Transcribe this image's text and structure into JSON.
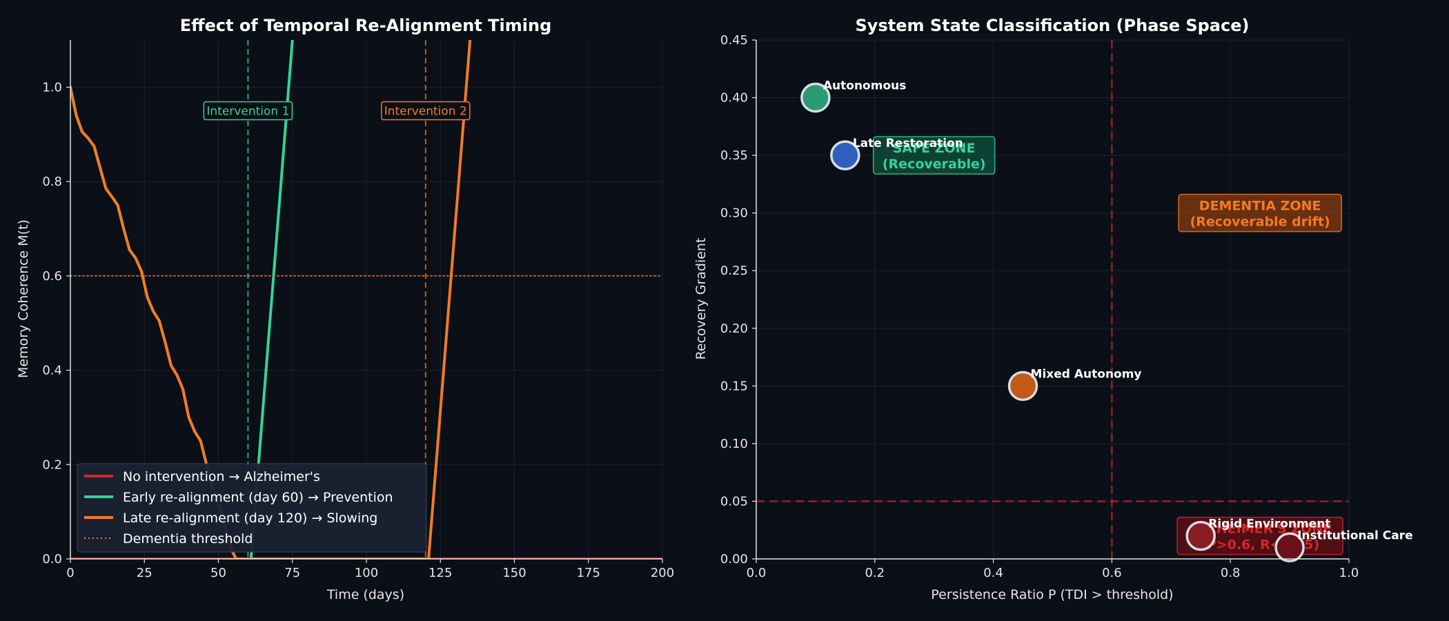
{
  "colors": {
    "background": "#0b0f17",
    "axis": "#e6e6e6",
    "grid": "#1c2330",
    "red": "#d62728",
    "green": "#34d399",
    "orange": "#f47b20",
    "blue": "#2f5fbf",
    "dark_green": "#2a9a72",
    "dark_orange": "#c25a17"
  },
  "chart_data": [
    {
      "type": "line",
      "title": "Effect of Temporal Re-Alignment Timing",
      "xlabel": "Time (days)",
      "ylabel": "Memory Coherence M(t)",
      "xlim": [
        0,
        200
      ],
      "ylim": [
        0,
        1.1
      ],
      "xticks": [
        0,
        25,
        50,
        75,
        100,
        125,
        150,
        175,
        200
      ],
      "yticks": [
        0.0,
        0.2,
        0.4,
        0.6,
        0.8,
        1.0
      ],
      "grid": true,
      "legend_position": "lower-left",
      "series": [
        {
          "name": "No intervention → Alzheimer's",
          "color": "#d62728",
          "style": "solid",
          "points": [
            [
              0,
              0
            ],
            [
              200,
              0
            ]
          ]
        },
        {
          "name": "Early re-alignment (day 60) → Prevention",
          "color": "#34d399",
          "style": "solid",
          "points": [
            [
              0,
              1.0
            ],
            [
              2,
              0.94
            ],
            [
              4,
              0.905
            ],
            [
              6,
              0.892
            ],
            [
              8,
              0.875
            ],
            [
              10,
              0.83
            ],
            [
              12,
              0.785
            ],
            [
              14,
              0.768
            ],
            [
              16,
              0.75
            ],
            [
              18,
              0.7
            ],
            [
              20,
              0.655
            ],
            [
              22,
              0.638
            ],
            [
              24,
              0.61
            ],
            [
              26,
              0.555
            ],
            [
              28,
              0.525
            ],
            [
              30,
              0.505
            ],
            [
              32,
              0.46
            ],
            [
              34,
              0.41
            ],
            [
              36,
              0.39
            ],
            [
              38,
              0.36
            ],
            [
              40,
              0.3
            ],
            [
              42,
              0.27
            ],
            [
              44,
              0.25
            ],
            [
              46,
              0.2
            ],
            [
              48,
              0.15
            ],
            [
              50,
              0.118
            ],
            [
              52,
              0.075
            ],
            [
              54,
              0.025
            ],
            [
              56,
              0.0
            ],
            [
              60,
              0.0
            ],
            [
              61,
              0.0
            ],
            [
              75,
              1.1
            ]
          ]
        },
        {
          "name": "Late re-alignment (day 120) → Slowing",
          "color": "#f47b20",
          "style": "solid",
          "points": [
            [
              0,
              1.0
            ],
            [
              2,
              0.94
            ],
            [
              4,
              0.905
            ],
            [
              6,
              0.892
            ],
            [
              8,
              0.875
            ],
            [
              10,
              0.83
            ],
            [
              12,
              0.785
            ],
            [
              14,
              0.768
            ],
            [
              16,
              0.75
            ],
            [
              18,
              0.7
            ],
            [
              20,
              0.655
            ],
            [
              22,
              0.638
            ],
            [
              24,
              0.61
            ],
            [
              26,
              0.555
            ],
            [
              28,
              0.525
            ],
            [
              30,
              0.505
            ],
            [
              32,
              0.46
            ],
            [
              34,
              0.41
            ],
            [
              36,
              0.39
            ],
            [
              38,
              0.36
            ],
            [
              40,
              0.3
            ],
            [
              42,
              0.27
            ],
            [
              44,
              0.25
            ],
            [
              46,
              0.2
            ],
            [
              48,
              0.15
            ],
            [
              50,
              0.118
            ],
            [
              52,
              0.075
            ],
            [
              54,
              0.025
            ],
            [
              56,
              0.0
            ],
            [
              120,
              0.0
            ],
            [
              121,
              0.0
            ],
            [
              135,
              1.1
            ]
          ]
        },
        {
          "name": "Dementia threshold",
          "color": "#f47b20",
          "style": "dotted",
          "points": [
            [
              0,
              0.6
            ],
            [
              200,
              0.6
            ]
          ]
        }
      ],
      "vlines": [
        {
          "x": 60,
          "color": "#34d399",
          "label": "Intervention 1"
        },
        {
          "x": 120,
          "color": "#f47b20",
          "label": "Intervention 2"
        }
      ]
    },
    {
      "type": "scatter",
      "title": "System State Classification (Phase Space)",
      "xlabel": "Persistence Ratio P (TDI > threshold)",
      "ylabel": "Recovery Gradient",
      "xlim": [
        0,
        1.0
      ],
      "ylim": [
        0,
        0.45
      ],
      "xticks": [
        0.0,
        0.2,
        0.4,
        0.6,
        0.8,
        1.0
      ],
      "yticks": [
        0.0,
        0.05,
        0.1,
        0.15,
        0.2,
        0.25,
        0.3,
        0.35,
        0.4,
        0.45
      ],
      "grid": true,
      "threshold_x": 0.6,
      "threshold_y": 0.05,
      "zones": [
        {
          "lines": [
            "SAFE ZONE",
            "(Recoverable)"
          ],
          "x": 0.3,
          "y": 0.35,
          "color": "#34d399",
          "fill": "#0e4a3a"
        },
        {
          "lines": [
            "DEMENTIA ZONE",
            "(Recoverable drift)"
          ],
          "x": 0.85,
          "y": 0.3,
          "color": "#f47b20",
          "fill": "#7a3510"
        },
        {
          "lines": [
            "ALZHEIMER'S ZONE",
            "(P>0.6, R<0.05)"
          ],
          "x": 0.85,
          "y": 0.02,
          "color": "#d62728",
          "fill": "#5a1015"
        }
      ],
      "points": [
        {
          "label": "Autonomous",
          "x": 0.1,
          "y": 0.4,
          "color": "#2a9a72"
        },
        {
          "label": "Late Restoration",
          "x": 0.15,
          "y": 0.35,
          "color": "#2f5fbf"
        },
        {
          "label": "Mixed Autonomy",
          "x": 0.45,
          "y": 0.15,
          "color": "#c25a17"
        },
        {
          "label": "Rigid Environment",
          "x": 0.75,
          "y": 0.02,
          "color": "#8a1c24"
        },
        {
          "label": "Institutional Care",
          "x": 0.9,
          "y": 0.01,
          "color": "#6a1018"
        }
      ]
    }
  ]
}
